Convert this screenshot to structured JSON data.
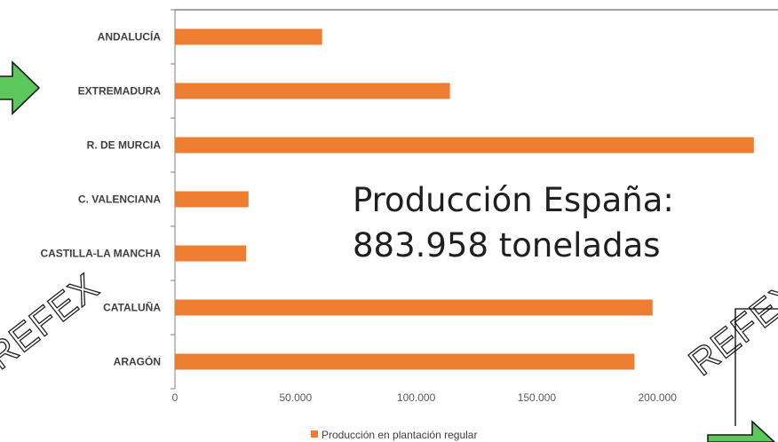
{
  "chart_data": {
    "type": "bar",
    "orientation": "horizontal",
    "categories": [
      "ANDALUCÍA",
      "EXTREMADURA",
      "R. DE MURCIA",
      "C. VALENCIANA",
      "CASTILLA-LA MANCHA",
      "CATALUÑA",
      "ARAGÓN"
    ],
    "series": [
      {
        "name": "Producción en plantación regular",
        "values": [
          61000,
          114000,
          240000,
          30500,
          29500,
          198000,
          190500
        ]
      }
    ],
    "xlim": [
      0,
      250000
    ],
    "xticks": [
      0,
      50000,
      100000,
      150000,
      200000
    ],
    "xtick_labels": [
      "0",
      "50.000",
      "100.000",
      "150.000",
      "200.000"
    ],
    "legend_position": "bottom",
    "grid": false,
    "colors": {
      "bar": "#ED7D31",
      "axis": "#808080",
      "arrow": "#5CC85C"
    },
    "annotations": {
      "line1": "Producción España:",
      "line2": "883.958 toneladas"
    },
    "watermark": "REFEX"
  }
}
